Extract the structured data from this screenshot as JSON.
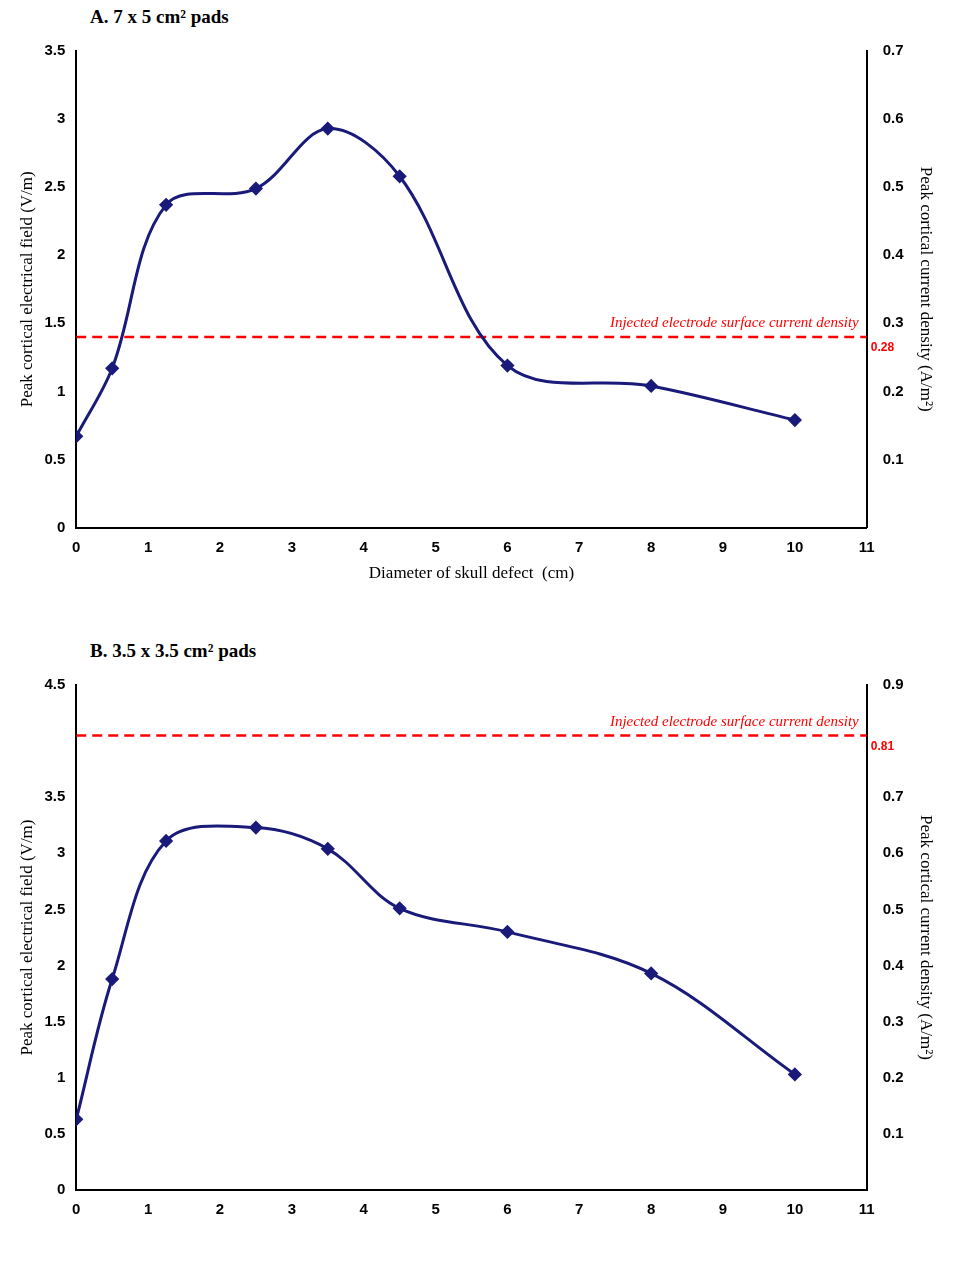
{
  "chart_data": [
    {
      "type": "line",
      "title": "A. 7 x 5 cm² pads",
      "x_label": "Diameter of skull defect  (cm)",
      "y_label": "Peak cortical electrical field (V/m)",
      "y2_label": "Peak cortical current density (A/m²)",
      "x": [
        0,
        0.5,
        1.25,
        2.5,
        3.5,
        4.5,
        6,
        8,
        10
      ],
      "series": [
        {
          "color": "#1a1a7a",
          "marker": "diamond",
          "line_style": "solid",
          "values": [
            0.67,
            1.17,
            2.37,
            2.49,
            2.93,
            2.58,
            1.19,
            1.04,
            0.79
          ]
        }
      ],
      "reference_line": {
        "label": "Injected electrode surface current density",
        "value": 0.28,
        "axis": "y2",
        "color": "#ff0000",
        "line_style": "dashed"
      },
      "xlim": [
        0,
        11
      ],
      "xticks": [
        0,
        1,
        2,
        3,
        4,
        5,
        6,
        7,
        8,
        9,
        10,
        11
      ],
      "ylim": [
        0,
        3.5
      ],
      "yticks": [
        0,
        0.5,
        1,
        1.5,
        2,
        2.5,
        3,
        3.5
      ],
      "y2lim": [
        0,
        0.7
      ],
      "y2ticks": [
        0.1,
        0.2,
        0.3,
        0.4,
        0.5,
        0.6,
        0.7
      ],
      "grid": false
    },
    {
      "type": "line",
      "title": "B. 3.5 x 3.5 cm² pads",
      "y_label": "Peak cortical electrical field (V/m)",
      "y2_label": "Peak cortical current density (A/m²)",
      "x": [
        0,
        0.5,
        1.25,
        2.5,
        3.5,
        4.5,
        6,
        8,
        10
      ],
      "series": [
        {
          "color": "#1a1a7a",
          "marker": "diamond",
          "line_style": "solid",
          "values": [
            0.63,
            1.88,
            3.11,
            3.23,
            3.04,
            2.51,
            2.3,
            1.93,
            1.03
          ]
        }
      ],
      "reference_line": {
        "label": "Injected electrode surface current density",
        "value": 0.81,
        "axis": "y2",
        "color": "#ff0000",
        "line_style": "dashed"
      },
      "xlim": [
        0,
        11
      ],
      "xticks": [
        0,
        1,
        2,
        3,
        4,
        5,
        6,
        7,
        8,
        9,
        10,
        11
      ],
      "ylim": [
        0,
        4.5
      ],
      "yticks": [
        0,
        0.5,
        1,
        1.5,
        2,
        2.5,
        3,
        3.5,
        4.5
      ],
      "y2lim": [
        0,
        0.9
      ],
      "y2ticks": [
        0.1,
        0.2,
        0.3,
        0.4,
        0.5,
        0.6,
        0.7,
        0.9
      ],
      "grid": false
    }
  ]
}
